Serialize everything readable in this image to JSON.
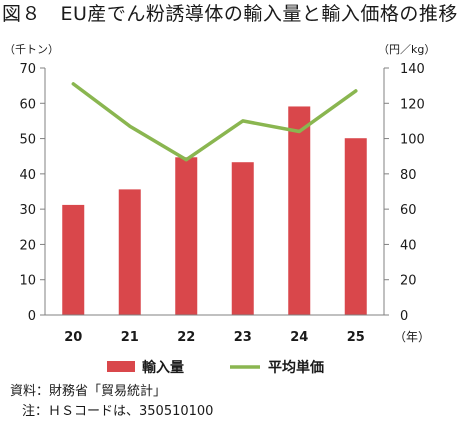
{
  "title": "図８　EU産でん粉誘導体の輸入量と輸入価格の推移",
  "source": "資料：財務省「貿易統計」",
  "note": "注：ＨＳコードは、350510100",
  "chart_data": {
    "type": "bar",
    "categories": [
      "20",
      "21",
      "22",
      "23",
      "24",
      "25"
    ],
    "x_unit": "（年）",
    "left_axis": {
      "unit": "（千トン）",
      "range": [
        0,
        70
      ],
      "ticks": [
        0,
        10,
        20,
        30,
        40,
        50,
        60,
        70
      ]
    },
    "right_axis": {
      "unit": "（円／kg）",
      "range": [
        0,
        140
      ],
      "ticks": [
        0,
        20,
        40,
        60,
        80,
        100,
        120,
        140
      ]
    },
    "series": [
      {
        "name": "輸入量",
        "type": "bar",
        "axis": "left",
        "color": "#d9474b",
        "values": [
          31.2,
          35.6,
          44.7,
          43.3,
          59.1,
          50.1
        ]
      },
      {
        "name": "平均単価",
        "type": "line",
        "axis": "right",
        "color": "#8ab650",
        "values": [
          131,
          107,
          88,
          110,
          104,
          127
        ]
      }
    ],
    "legend_position": "bottom",
    "grid": false
  }
}
